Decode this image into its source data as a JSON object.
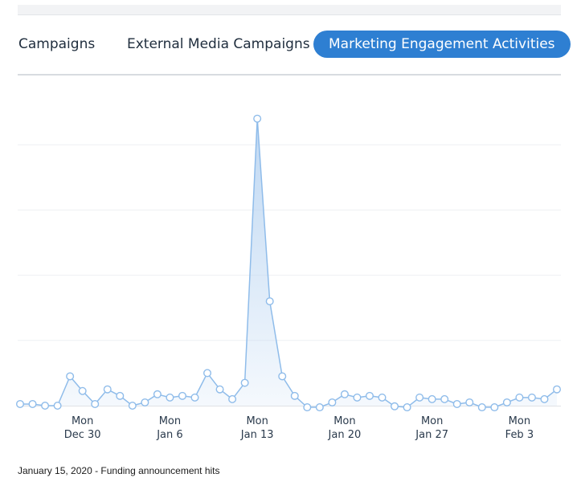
{
  "tabs": [
    {
      "label": "Campaigns",
      "active": false
    },
    {
      "label": "External Media Campaigns",
      "active": false
    },
    {
      "label": "Marketing Engagement Activities",
      "active": true
    }
  ],
  "colors": {
    "accent": "#2e7fd2",
    "line": "#8fbcea",
    "fill_top": "#bcd6f2",
    "grid": "#eef0f3",
    "axis": "#dfe2e6"
  },
  "chart_data": {
    "type": "area",
    "x_start": "2019-12-25",
    "x_end": "2020-02-07",
    "ylim": [
      0,
      100
    ],
    "grid": true,
    "values": [
      0.5,
      0.5,
      0,
      0,
      9,
      4.5,
      0.5,
      5,
      3,
      0,
      1,
      3.5,
      2.5,
      3,
      2.5,
      10,
      5,
      2,
      7,
      88,
      32,
      9,
      3,
      -0.5,
      -0.5,
      1,
      3.5,
      2.5,
      3,
      2.5,
      -0.2,
      -0.5,
      2.5,
      2,
      2,
      0.5,
      1,
      -0.5,
      -0.5,
      1,
      2.5,
      2.5,
      2,
      5
    ],
    "x_ticks": [
      {
        "day": "Mon",
        "date": "Dec 30"
      },
      {
        "day": "Mon",
        "date": "Jan 6"
      },
      {
        "day": "Mon",
        "date": "Jan 13"
      },
      {
        "day": "Mon",
        "date": "Jan 20"
      },
      {
        "day": "Mon",
        "date": "Jan 27"
      },
      {
        "day": "Mon",
        "date": "Feb 3"
      }
    ]
  },
  "caption": "January 15, 2020 - Funding announcement hits"
}
